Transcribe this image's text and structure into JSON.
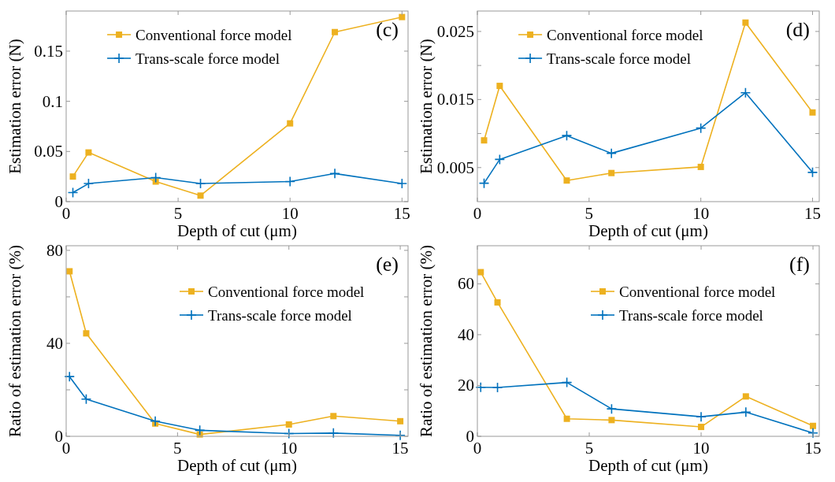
{
  "chart_data": [
    {
      "type": "line",
      "xlabel": "Depth of cut (μm)",
      "ylabel": "Estimation error (N)",
      "annotations": [
        "(c)"
      ],
      "xlim": [
        0,
        15.27
      ],
      "xticks": [
        0,
        5,
        10,
        15
      ],
      "ylim": [
        0,
        0.19
      ],
      "yticks": [
        0,
        0.05,
        0.1,
        0.15
      ],
      "legend": "top",
      "grid": false,
      "series": [
        {
          "name": "Conventional force model",
          "color": "#edb120",
          "marker": "square",
          "x": [
            0.3,
            1,
            4,
            6,
            10,
            12,
            15
          ],
          "values": [
            0.025,
            0.049,
            0.02,
            0.006,
            0.078,
            0.169,
            0.184
          ]
        },
        {
          "name": "Trans-scale force model",
          "color": "#0072bd",
          "marker": "cross",
          "x": [
            0.3,
            1,
            4,
            6,
            10,
            12,
            15
          ],
          "values": [
            0.009,
            0.018,
            0.024,
            0.018,
            0.02,
            0.028,
            0.018
          ]
        }
      ]
    },
    {
      "type": "line",
      "xlabel": "Depth of cut (μm)",
      "ylabel": "Estimation error (N)",
      "annotations": [
        "(d)"
      ],
      "xlim": [
        0,
        15.3
      ],
      "xticks": [
        0,
        5,
        10,
        15
      ],
      "ylim": [
        0,
        0.028
      ],
      "yticks": [
        0.005,
        {
          "value": 0.01,
          "label": null
        },
        0.015,
        {
          "value": 0.02,
          "label": null
        },
        0.025
      ],
      "legend": "top",
      "grid": false,
      "series": [
        {
          "name": "Conventional force model",
          "color": "#edb120",
          "marker": "square",
          "x": [
            0.3,
            1,
            4,
            6,
            10,
            12,
            15
          ],
          "values": [
            0.009,
            0.017,
            0.0031,
            0.0042,
            0.0051,
            0.0263,
            0.0131
          ]
        },
        {
          "name": "Trans-scale force model",
          "color": "#0072bd",
          "marker": "cross",
          "x": [
            0.3,
            1,
            4,
            6,
            10,
            12,
            15
          ],
          "values": [
            0.0027,
            0.0062,
            0.0097,
            0.0071,
            0.0108,
            0.016,
            0.0043
          ]
        }
      ]
    },
    {
      "type": "line",
      "xlabel": "Depth of cut (μm)",
      "ylabel": "Ratio of estimation error (%)",
      "annotations": [
        "(e)"
      ],
      "xlim": [
        0,
        15.35
      ],
      "xticks": [
        0,
        5,
        10,
        15
      ],
      "ylim": [
        0,
        82
      ],
      "yticks": [
        0,
        {
          "value": 20,
          "label": null
        },
        40,
        {
          "value": 60,
          "label": null
        },
        80
      ],
      "legend": "top right",
      "grid": false,
      "series": [
        {
          "name": "Conventional force model",
          "color": "#edb120",
          "marker": "square",
          "x": [
            0.15,
            0.9,
            4,
            6,
            10,
            12,
            15
          ],
          "values": [
            71,
            44.3,
            5.5,
            0.8,
            5.1,
            8.7,
            6.5
          ]
        },
        {
          "name": "Trans-scale force model",
          "color": "#0072bd",
          "marker": "cross",
          "x": [
            0.15,
            0.9,
            4,
            6,
            10,
            12,
            15
          ],
          "values": [
            25.7,
            16,
            6.5,
            2.6,
            1.2,
            1.4,
            0.4
          ]
        }
      ]
    },
    {
      "type": "line",
      "xlabel": "Depth of cut (μm)",
      "ylabel": "Ratio of estimation error (%)",
      "annotations": [
        "(f)"
      ],
      "xlim": [
        0,
        15.28
      ],
      "xticks": [
        0,
        5,
        10,
        15
      ],
      "ylim": [
        0,
        75
      ],
      "yticks": [
        0,
        20,
        40,
        60
      ],
      "legend": "top right",
      "grid": false,
      "series": [
        {
          "name": "Conventional force model",
          "color": "#edb120",
          "marker": "square",
          "x": [
            0.15,
            0.9,
            4,
            6,
            10,
            12,
            15
          ],
          "values": [
            64.6,
            52.7,
            6.9,
            6.4,
            3.7,
            15.7,
            4.1
          ]
        },
        {
          "name": "Trans-scale force model",
          "color": "#0072bd",
          "marker": "cross",
          "x": [
            0.15,
            0.9,
            4,
            6,
            10,
            12,
            15
          ],
          "values": [
            19.3,
            19.2,
            21.2,
            10.8,
            7.7,
            9.5,
            1.3
          ]
        }
      ]
    }
  ]
}
